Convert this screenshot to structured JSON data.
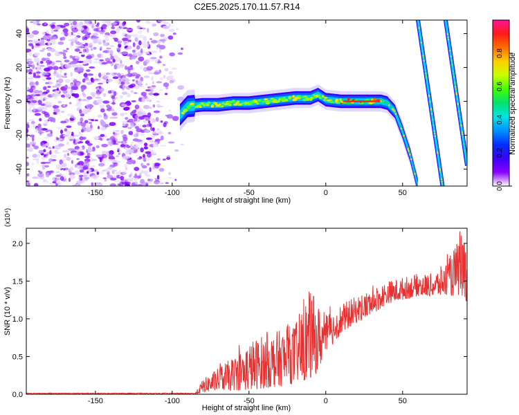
{
  "figure": {
    "title": "C2E5.2025.170.11.57.R14"
  },
  "chart_data": [
    {
      "type": "heatmap",
      "xlabel": "Height of straight line (km)",
      "ylabel": "Frequency (Hz)",
      "xlim": [
        -195,
        92
      ],
      "ylim": [
        -50,
        48
      ],
      "xticks": [
        -150,
        -100,
        -50,
        0,
        50
      ],
      "yticks": [
        -40,
        -20,
        0,
        20,
        40
      ],
      "grid": false,
      "colorbar": {
        "label": "Normalized spectral amplitude",
        "range": [
          0,
          1
        ],
        "ticks": [
          "0.0",
          "0.2",
          "0.4",
          "0.6",
          "0.8"
        ],
        "colormap": [
          "#ffffff",
          "#8a00ff",
          "#3a00ff",
          "#0030ff",
          "#0090ff",
          "#00e5e5",
          "#00e070",
          "#40ff00",
          "#c8ff00",
          "#ffd000",
          "#ff7000",
          "#ff1a1a",
          "#ff1493"
        ]
      },
      "ridge": {
        "x": [
          -95,
          -90,
          -80,
          -70,
          -60,
          -50,
          -40,
          -30,
          -20,
          -10,
          -5,
          0,
          10,
          20,
          30,
          36,
          40,
          45,
          50,
          55,
          60
        ],
        "y": [
          -8,
          -3,
          -2,
          -2,
          -1,
          -1,
          0,
          1,
          2,
          2,
          4,
          1,
          0,
          0,
          0,
          0,
          -1,
          -6,
          -18,
          -32,
          -50
        ]
      },
      "streaks": [
        {
          "x": [
            60,
            76
          ],
          "y": [
            48,
            -50
          ]
        },
        {
          "x": [
            78,
            92
          ],
          "y": [
            48,
            -38
          ]
        }
      ],
      "noise_region": {
        "x": [
          -195,
          -92
        ],
        "y": [
          -50,
          48
        ]
      }
    },
    {
      "type": "line",
      "xlabel": "Height of straight line (km)",
      "ylabel": "SNR (10 * v/v)",
      "multiplier_label": "(x10⁴)",
      "xlim": [
        -195,
        92
      ],
      "ylim": [
        0,
        2.2
      ],
      "xticks": [
        -150,
        -100,
        -50,
        0,
        50
      ],
      "yticks": [
        "0.0",
        "0.5",
        "1.0",
        "1.5",
        "2.0"
      ],
      "grid": false,
      "series": [
        {
          "color": "#e83030",
          "envelope": {
            "x": [
              -195,
              -120,
              -85,
              -80,
              -70,
              -60,
              -50,
              -40,
              -30,
              -20,
              -10,
              -5,
              0,
              10,
              20,
              30,
              40,
              50,
              60,
              70,
              80,
              90,
              92
            ],
            "low": [
              0.0,
              0.0,
              0.0,
              0.02,
              0.05,
              0.05,
              0.05,
              0.08,
              0.1,
              0.15,
              0.2,
              0.3,
              0.55,
              0.8,
              0.95,
              1.05,
              1.2,
              1.25,
              1.3,
              1.3,
              1.3,
              1.3,
              1.2
            ],
            "high": [
              0.02,
              0.02,
              0.02,
              0.2,
              0.35,
              0.5,
              0.7,
              0.8,
              0.85,
              0.95,
              1.4,
              1.2,
              1.05,
              1.2,
              1.3,
              1.4,
              1.5,
              1.55,
              1.6,
              1.6,
              1.8,
              2.2,
              1.9
            ]
          }
        }
      ]
    }
  ]
}
